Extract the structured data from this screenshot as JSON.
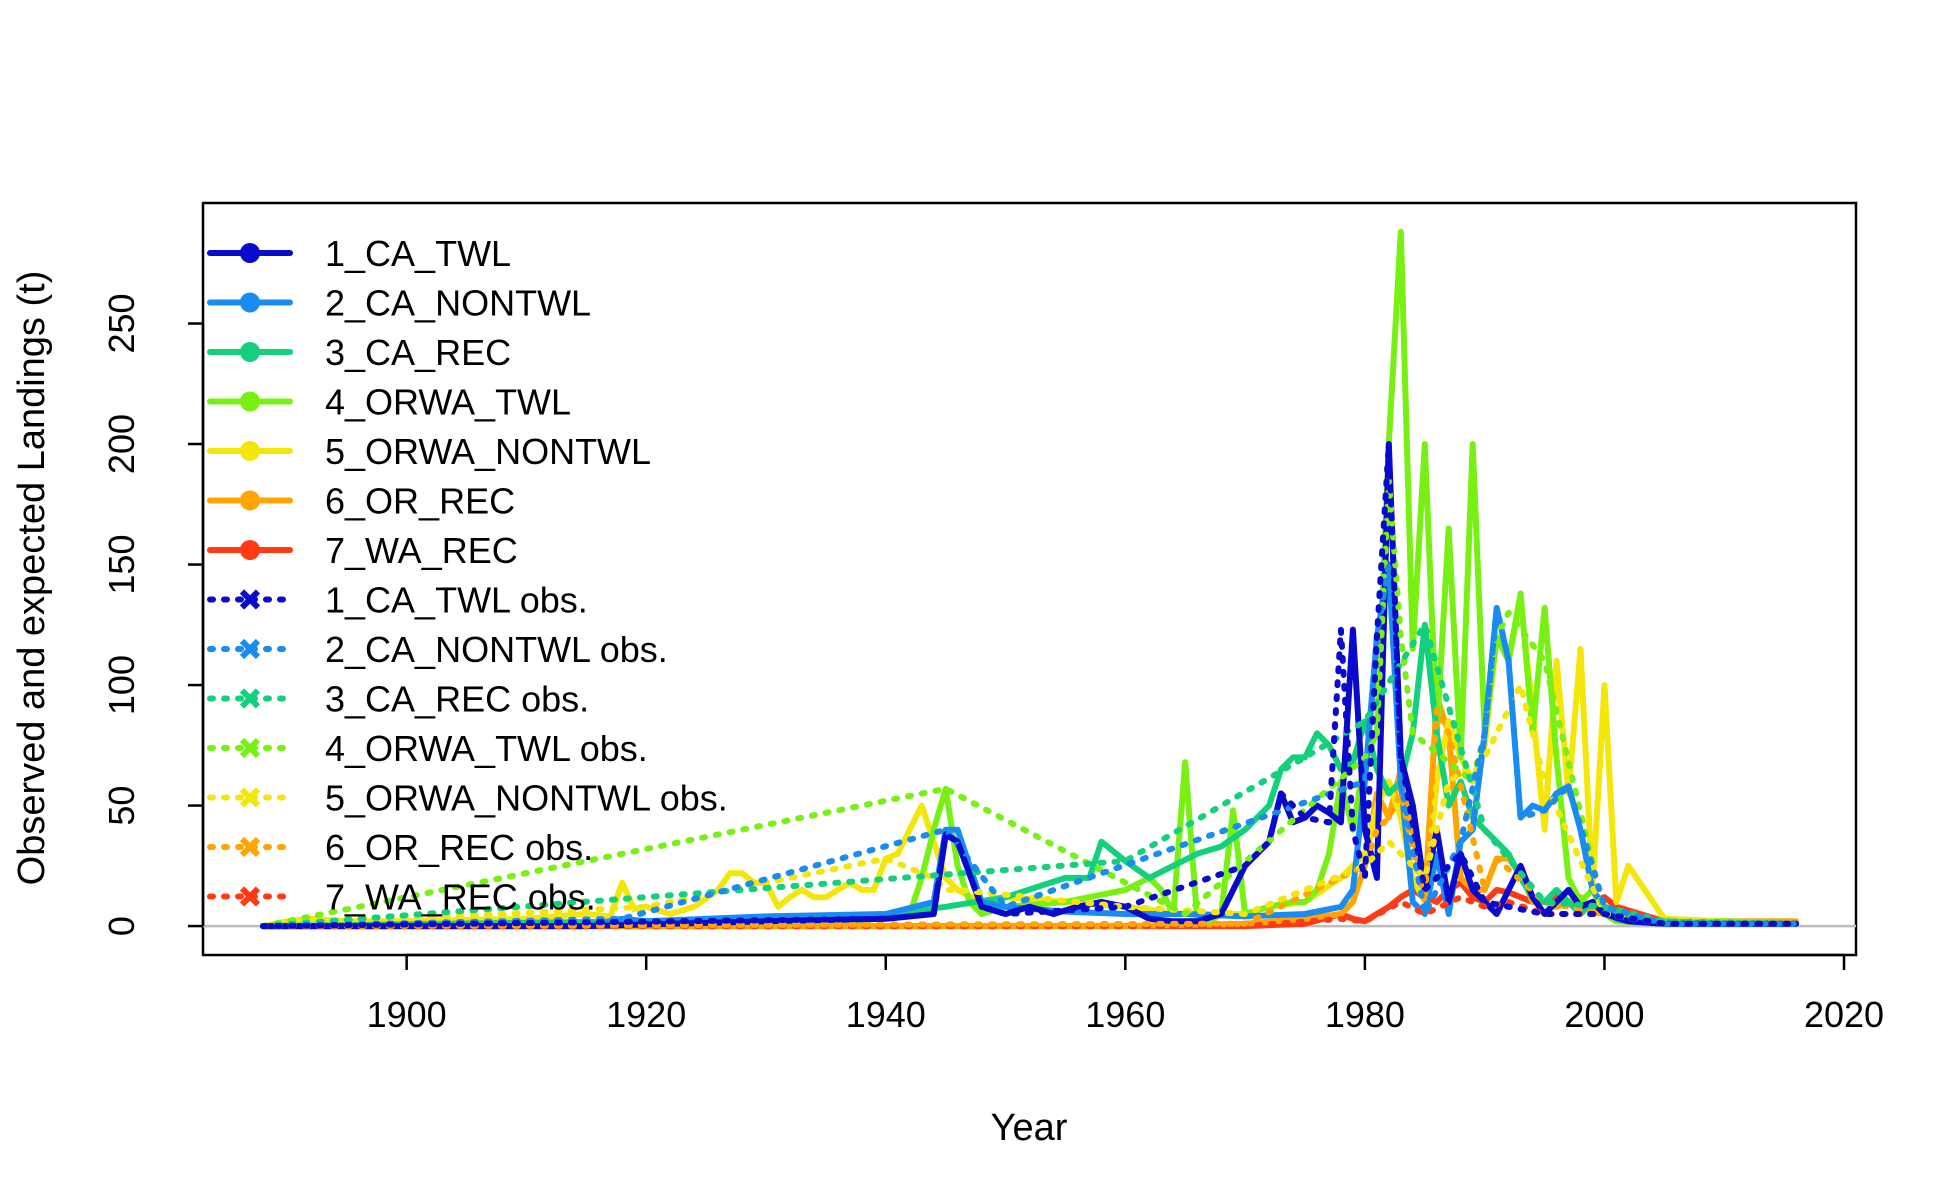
{
  "chart_data": {
    "type": "line",
    "title": "",
    "xlabel": "Year",
    "ylabel": "Observed and expected Landings (t)",
    "xlim": [
      1883,
      2021
    ],
    "ylim": [
      -12,
      300
    ],
    "xticks": [
      1900,
      1920,
      1940,
      1960,
      1980,
      2000,
      2020
    ],
    "yticks": [
      0,
      50,
      100,
      150,
      200,
      250
    ],
    "grid": false,
    "legend_position": "top-left",
    "zero_line": true,
    "series": [
      {
        "name": "1_CA_TWL",
        "color": "#0a0acd",
        "style": "solid",
        "x": [
          1888,
          1915,
          1930,
          1940,
          1944,
          1945,
          1946,
          1948,
          1950,
          1952,
          1954,
          1956,
          1958,
          1960,
          1962,
          1964,
          1966,
          1968,
          1970,
          1972,
          1973,
          1974,
          1975,
          1976,
          1977,
          1978,
          1979,
          1980,
          1981,
          1982,
          1983,
          1984,
          1985,
          1986,
          1987,
          1988,
          1989,
          1990,
          1991,
          1992,
          1993,
          1994,
          1995,
          1996,
          1997,
          1998,
          1999,
          2000,
          2002,
          2005,
          2010,
          2016
        ],
        "y": [
          0,
          0,
          2,
          3,
          5,
          38,
          35,
          8,
          5,
          8,
          5,
          8,
          10,
          8,
          3,
          2,
          2,
          5,
          25,
          35,
          55,
          43,
          45,
          50,
          47,
          43,
          123,
          40,
          20,
          200,
          70,
          50,
          15,
          40,
          10,
          30,
          15,
          10,
          5,
          15,
          25,
          12,
          5,
          10,
          15,
          8,
          10,
          5,
          2,
          1,
          1,
          1
        ]
      },
      {
        "name": "2_CA_NONTWL",
        "color": "#1a8cf0",
        "style": "solid",
        "x": [
          1888,
          1915,
          1918,
          1920,
          1930,
          1940,
          1944,
          1945,
          1946,
          1948,
          1950,
          1955,
          1960,
          1965,
          1970,
          1975,
          1978,
          1979,
          1980,
          1981,
          1982,
          1983,
          1984,
          1985,
          1986,
          1987,
          1988,
          1989,
          1990,
          1991,
          1992,
          1993,
          1994,
          1995,
          1996,
          1997,
          1998,
          1999,
          2000,
          2001,
          2002,
          2005,
          2010,
          2016
        ],
        "y": [
          0,
          0,
          3,
          2,
          4,
          5,
          10,
          40,
          40,
          10,
          8,
          6,
          5,
          5,
          4,
          5,
          8,
          15,
          60,
          120,
          150,
          60,
          10,
          5,
          30,
          5,
          35,
          40,
          80,
          132,
          110,
          45,
          50,
          48,
          55,
          58,
          40,
          15,
          8,
          3,
          2,
          1,
          1,
          1
        ]
      },
      {
        "name": "3_CA_REC",
        "color": "#14d07c",
        "style": "solid",
        "x": [
          1888,
          1920,
          1930,
          1940,
          1945,
          1950,
          1955,
          1957,
          1958,
          1960,
          1962,
          1964,
          1966,
          1968,
          1970,
          1972,
          1973,
          1974,
          1975,
          1976,
          1977,
          1978,
          1979,
          1980,
          1981,
          1982,
          1983,
          1984,
          1985,
          1986,
          1987,
          1988,
          1989,
          1990,
          1991,
          1992,
          1993,
          1994,
          1995,
          1996,
          1997,
          1998,
          1999,
          2000,
          2002,
          2005,
          2010,
          2016
        ],
        "y": [
          0,
          2,
          3,
          5,
          8,
          12,
          20,
          20,
          35,
          27,
          20,
          25,
          30,
          33,
          40,
          50,
          65,
          70,
          70,
          80,
          75,
          65,
          68,
          85,
          65,
          55,
          60,
          80,
          125,
          80,
          50,
          60,
          45,
          40,
          35,
          30,
          20,
          12,
          10,
          15,
          10,
          5,
          10,
          8,
          3,
          2,
          1,
          1
        ]
      },
      {
        "name": "4_ORWA_TWL",
        "color": "#78f014",
        "style": "solid",
        "x": [
          1888,
          1935,
          1940,
          1942,
          1943,
          1944,
          1945,
          1946,
          1947,
          1948,
          1950,
          1955,
          1960,
          1962,
          1963,
          1964,
          1965,
          1966,
          1967,
          1968,
          1969,
          1970,
          1972,
          1974,
          1975,
          1976,
          1977,
          1978,
          1979,
          1980,
          1981,
          1982,
          1983,
          1984,
          1985,
          1986,
          1987,
          1988,
          1989,
          1990,
          1991,
          1992,
          1993,
          1994,
          1995,
          1996,
          1997,
          1998,
          1999,
          2000,
          2001,
          2005,
          2010,
          2016
        ],
        "y": [
          0,
          2,
          3,
          5,
          20,
          40,
          57,
          25,
          10,
          5,
          8,
          10,
          15,
          20,
          15,
          5,
          68,
          3,
          2,
          5,
          48,
          5,
          8,
          10,
          10,
          15,
          30,
          60,
          40,
          70,
          80,
          200,
          288,
          115,
          200,
          80,
          165,
          70,
          200,
          80,
          120,
          110,
          138,
          80,
          132,
          70,
          20,
          10,
          15,
          5,
          2,
          1,
          2,
          1
        ]
      },
      {
        "name": "5_ORWA_NONTWL",
        "color": "#f5e60a",
        "style": "solid",
        "x": [
          1888,
          1890,
          1892,
          1895,
          1900,
          1910,
          1915,
          1917,
          1918,
          1919,
          1920,
          1922,
          1924,
          1926,
          1927,
          1928,
          1929,
          1930,
          1931,
          1932,
          1933,
          1934,
          1935,
          1936,
          1937,
          1938,
          1939,
          1940,
          1941,
          1942,
          1943,
          1944,
          1945,
          1946,
          1948,
          1950,
          1955,
          1960,
          1965,
          1970,
          1972,
          1975,
          1978,
          1980,
          1981,
          1982,
          1983,
          1984,
          1985,
          1986,
          1987,
          1988,
          1989,
          1990,
          1991,
          1992,
          1993,
          1994,
          1995,
          1996,
          1997,
          1998,
          1999,
          2000,
          2001,
          2002,
          2005,
          2010,
          2016
        ],
        "y": [
          0,
          2,
          3,
          2,
          2,
          3,
          5,
          4,
          18,
          7,
          8,
          5,
          8,
          15,
          22,
          22,
          18,
          18,
          8,
          12,
          15,
          12,
          12,
          15,
          18,
          15,
          15,
          28,
          30,
          40,
          50,
          35,
          20,
          15,
          10,
          12,
          10,
          8,
          5,
          5,
          8,
          10,
          20,
          30,
          50,
          60,
          45,
          20,
          10,
          60,
          85,
          70,
          60,
          75,
          120,
          110,
          135,
          90,
          40,
          110,
          55,
          115,
          15,
          100,
          10,
          25,
          3,
          2,
          1
        ]
      },
      {
        "name": "6_OR_REC",
        "color": "#ffa500",
        "style": "solid",
        "x": [
          1888,
          1960,
          1970,
          1975,
          1978,
          1979,
          1980,
          1981,
          1982,
          1983,
          1984,
          1985,
          1986,
          1987,
          1988,
          1989,
          1990,
          1991,
          1992,
          1993,
          1994,
          1995,
          1996,
          1997,
          1998,
          1999,
          2000,
          2001,
          2005,
          2010,
          2016
        ],
        "y": [
          0,
          0,
          1,
          3,
          5,
          10,
          25,
          55,
          45,
          65,
          40,
          10,
          95,
          80,
          20,
          15,
          15,
          28,
          28,
          22,
          10,
          10,
          8,
          10,
          12,
          6,
          5,
          3,
          1,
          2,
          2
        ]
      },
      {
        "name": "7_WA_REC",
        "color": "#ff3a14",
        "style": "solid",
        "x": [
          1888,
          1960,
          1970,
          1975,
          1978,
          1979,
          1980,
          1981,
          1982,
          1983,
          1984,
          1985,
          1986,
          1987,
          1988,
          1989,
          1990,
          1991,
          1992,
          1993,
          1994,
          1995,
          1996,
          1997,
          1998,
          1999,
          2000,
          2001,
          2005,
          2010,
          2016
        ],
        "y": [
          0,
          0,
          0,
          1,
          5,
          3,
          2,
          5,
          8,
          12,
          15,
          12,
          10,
          15,
          18,
          12,
          10,
          15,
          14,
          12,
          10,
          10,
          12,
          10,
          8,
          10,
          12,
          8,
          2,
          1,
          1
        ]
      },
      {
        "name": "1_CA_TWL obs.",
        "color": "#0a0acd",
        "style": "dotted",
        "x": [
          1888,
          1940,
          1944,
          1945,
          1946,
          1948,
          1950,
          1960,
          1970,
          1972,
          1973,
          1975,
          1977,
          1978,
          1979,
          1980,
          1981,
          1982,
          1983,
          1985,
          1988,
          1990,
          1995,
          2000,
          2005,
          2016
        ],
        "y": [
          0,
          3,
          5,
          38,
          35,
          8,
          5,
          8,
          25,
          35,
          55,
          45,
          43,
          123,
          40,
          20,
          120,
          200,
          70,
          15,
          30,
          10,
          5,
          5,
          1,
          1
        ]
      },
      {
        "name": "2_CA_NONTWL obs.",
        "color": "#1a8cf0",
        "style": "dotted",
        "x": [
          1888,
          1918,
          1945,
          1950,
          1980,
          1981,
          1982,
          1983,
          1985,
          1988,
          1990,
          1991,
          1992,
          1993,
          1995,
          1997,
          2000,
          2005,
          2016
        ],
        "y": [
          0,
          3,
          40,
          8,
          60,
          120,
          150,
          60,
          5,
          35,
          80,
          132,
          110,
          45,
          48,
          58,
          8,
          1,
          1
        ]
      },
      {
        "name": "3_CA_REC obs.",
        "color": "#14d07c",
        "style": "dotted",
        "x": [
          1888,
          1960,
          1975,
          1980,
          1985,
          1990,
          1995,
          2000,
          2005,
          2016
        ],
        "y": [
          0,
          27,
          70,
          85,
          125,
          40,
          10,
          8,
          2,
          1
        ]
      },
      {
        "name": "4_ORWA_TWL obs.",
        "color": "#78f014",
        "style": "dotted",
        "x": [
          1888,
          1945,
          1965,
          1980,
          1981,
          1982,
          1983,
          1984,
          1989,
          1990,
          1991,
          1992,
          1995,
          2000,
          2005,
          2016
        ],
        "y": [
          0,
          57,
          5,
          70,
          80,
          185,
          120,
          80,
          60,
          80,
          120,
          130,
          110,
          5,
          1,
          1
        ]
      },
      {
        "name": "5_ORWA_NONTWL obs.",
        "color": "#f5e60a",
        "style": "dotted",
        "x": [
          1888,
          1920,
          1940,
          1944,
          1945,
          1946,
          1960,
          1970,
          1980,
          1981,
          1982,
          1985,
          1987,
          1990,
          1993,
          1995,
          2000,
          2005,
          2016
        ],
        "y": [
          0,
          8,
          28,
          20,
          15,
          15,
          8,
          5,
          25,
          30,
          35,
          20,
          60,
          70,
          100,
          60,
          5,
          2,
          1
        ]
      },
      {
        "name": "6_OR_REC obs.",
        "color": "#ffa500",
        "style": "dotted",
        "x": [
          1888,
          1970,
          1980,
          1981,
          1982,
          1983,
          1985,
          1986,
          1987,
          1990,
          1991,
          1995,
          2000,
          2005,
          2016
        ],
        "y": [
          0,
          1,
          25,
          40,
          45,
          55,
          10,
          90,
          80,
          15,
          28,
          10,
          5,
          1,
          2
        ]
      },
      {
        "name": "7_WA_REC obs.",
        "color": "#ff3a14",
        "style": "dotted",
        "x": [
          1888,
          1970,
          1978,
          1980,
          1983,
          1985,
          1988,
          1990,
          1992,
          1995,
          1998,
          2000,
          2005,
          2016
        ],
        "y": [
          0,
          0,
          3,
          2,
          10,
          5,
          12,
          8,
          10,
          5,
          5,
          5,
          1,
          1
        ]
      }
    ]
  }
}
